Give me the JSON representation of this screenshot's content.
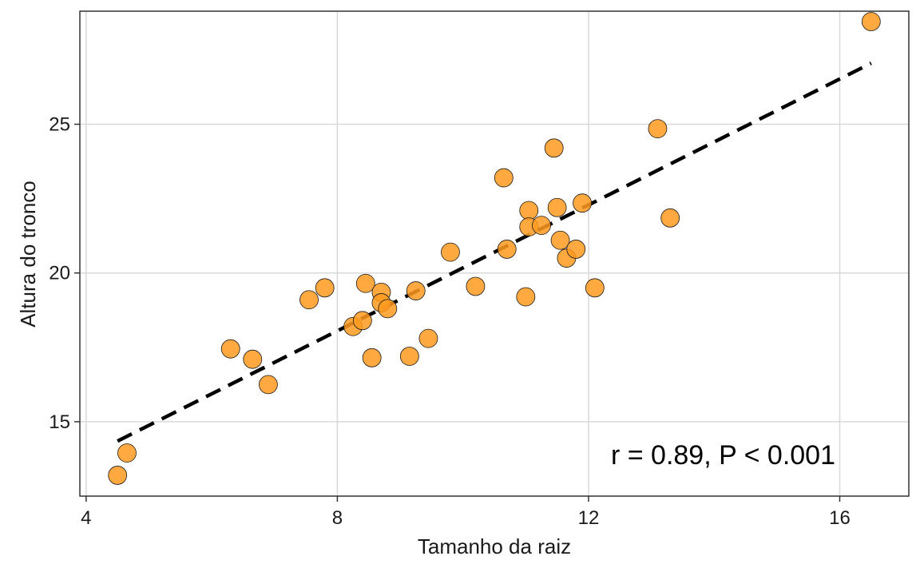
{
  "chart_data": {
    "type": "scatter",
    "xlabel": "Tamanho da raiz",
    "ylabel": "Altura do tronco",
    "xlim": [
      3.9,
      17.1
    ],
    "ylim": [
      12.5,
      28.8
    ],
    "x_ticks": [
      4,
      8,
      12,
      16
    ],
    "y_ticks": [
      15,
      20,
      25
    ],
    "grid": true,
    "legend": "none",
    "annotation": "r = 0.89, P < 0.001",
    "colors": {
      "point_fill": "#ff9a1f",
      "point_stroke": "#1a1a1a",
      "trend_line": "#000000",
      "grid": "#d9d9d9",
      "panel_border": "#333333"
    },
    "trend_line": {
      "style": "dashed",
      "x": [
        4.5,
        16.5
      ],
      "y": [
        14.35,
        27.05
      ]
    },
    "points": [
      {
        "x": 4.5,
        "y": 13.2
      },
      {
        "x": 4.65,
        "y": 13.95
      },
      {
        "x": 6.3,
        "y": 17.45
      },
      {
        "x": 6.65,
        "y": 17.1
      },
      {
        "x": 6.9,
        "y": 16.25
      },
      {
        "x": 7.55,
        "y": 19.1
      },
      {
        "x": 7.8,
        "y": 19.5
      },
      {
        "x": 8.25,
        "y": 18.2
      },
      {
        "x": 8.4,
        "y": 18.4
      },
      {
        "x": 8.45,
        "y": 19.65
      },
      {
        "x": 8.55,
        "y": 17.15
      },
      {
        "x": 8.7,
        "y": 19.35
      },
      {
        "x": 8.7,
        "y": 19.0
      },
      {
        "x": 8.8,
        "y": 18.8
      },
      {
        "x": 9.15,
        "y": 17.2
      },
      {
        "x": 9.25,
        "y": 19.4
      },
      {
        "x": 9.45,
        "y": 17.8
      },
      {
        "x": 9.8,
        "y": 20.7
      },
      {
        "x": 10.2,
        "y": 19.55
      },
      {
        "x": 10.65,
        "y": 23.2
      },
      {
        "x": 10.7,
        "y": 20.8
      },
      {
        "x": 11.0,
        "y": 19.2
      },
      {
        "x": 11.05,
        "y": 22.1
      },
      {
        "x": 11.05,
        "y": 21.55
      },
      {
        "x": 11.25,
        "y": 21.6
      },
      {
        "x": 11.45,
        "y": 24.2
      },
      {
        "x": 11.5,
        "y": 22.2
      },
      {
        "x": 11.55,
        "y": 21.1
      },
      {
        "x": 11.65,
        "y": 20.5
      },
      {
        "x": 11.8,
        "y": 20.8
      },
      {
        "x": 11.9,
        "y": 22.35
      },
      {
        "x": 12.1,
        "y": 19.5
      },
      {
        "x": 13.1,
        "y": 24.85
      },
      {
        "x": 13.3,
        "y": 21.85
      },
      {
        "x": 16.5,
        "y": 28.45
      }
    ]
  }
}
